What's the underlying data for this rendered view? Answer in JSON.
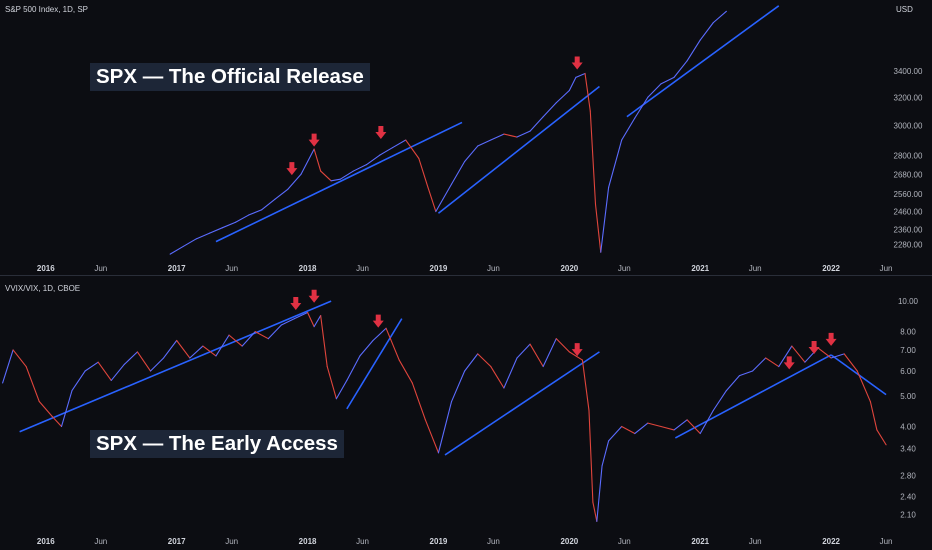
{
  "theme": {
    "background": "#0c0d12",
    "divider": "#2a2e39",
    "axis_text": "#b2b5be",
    "trend_line": "#2962ff",
    "up_color": "#5b6cff",
    "down_color": "#e0453c",
    "marker_color": "#e03143"
  },
  "top_pane": {
    "symbol_label": "S&P 500 Index, 1D, SP",
    "currency": "USD",
    "overlay_title": "SPX — The Official Release"
  },
  "bottom_pane": {
    "symbol_label": "VVIX/VIX, 1D, CBOE",
    "overlay_title": "SPX — The Early Access"
  },
  "chart_data": [
    {
      "type": "line",
      "title": "S&P 500 Index, 1D, SP",
      "ylabel": "USD",
      "y_scale": "log",
      "ylim": [
        2190,
        3930
      ],
      "xlim": [
        2015.65,
        2022.45
      ],
      "y_ticks": [
        "3400.00",
        "3200.00",
        "3000.00",
        "2800.00",
        "2680.00",
        "2560.00",
        "2460.00",
        "2360.00",
        "2280.00"
      ],
      "x_ticks": [
        {
          "label": "2016",
          "x": 2016.0
        },
        {
          "label": "Jun",
          "x": 2016.42
        },
        {
          "label": "2017",
          "x": 2017.0
        },
        {
          "label": "Jun",
          "x": 2017.42
        },
        {
          "label": "2018",
          "x": 2018.0
        },
        {
          "label": "Jun",
          "x": 2018.42
        },
        {
          "label": "2019",
          "x": 2019.0
        },
        {
          "label": "Jun",
          "x": 2019.42
        },
        {
          "label": "2020",
          "x": 2020.0
        },
        {
          "label": "Jun",
          "x": 2020.42
        },
        {
          "label": "2021",
          "x": 2021.0
        },
        {
          "label": "Jun",
          "x": 2021.42
        },
        {
          "label": "2022",
          "x": 2022.0
        },
        {
          "label": "Jun",
          "x": 2022.42
        }
      ],
      "series": [
        {
          "x": [
            2016.95,
            2017.05,
            2017.15,
            2017.25,
            2017.35,
            2017.45,
            2017.55,
            2017.65,
            2017.75,
            2017.85,
            2017.95,
            2018.05,
            2018.1,
            2018.18,
            2018.25,
            2018.35,
            2018.45,
            2018.55,
            2018.65,
            2018.75,
            2018.85,
            2018.92,
            2018.98,
            2019.1,
            2019.2,
            2019.3,
            2019.4,
            2019.5,
            2019.6,
            2019.7,
            2019.8,
            2019.9,
            2020.0,
            2020.05,
            2020.12,
            2020.16,
            2020.2,
            2020.24,
            2020.3,
            2020.4,
            2020.5,
            2020.6,
            2020.7,
            2020.8,
            2020.9,
            2021.0,
            2021.1,
            2021.2
          ],
          "y": [
            2230,
            2270,
            2310,
            2340,
            2370,
            2400,
            2440,
            2470,
            2530,
            2590,
            2680,
            2840,
            2700,
            2640,
            2650,
            2700,
            2740,
            2800,
            2850,
            2900,
            2780,
            2600,
            2460,
            2620,
            2760,
            2860,
            2900,
            2940,
            2920,
            2960,
            3060,
            3160,
            3250,
            3350,
            3380,
            3100,
            2500,
            2240,
            2600,
            2900,
            3050,
            3200,
            3300,
            3350,
            3480,
            3650,
            3800,
            3900
          ]
        }
      ],
      "trend_lines": [
        {
          "x": [
            2017.3,
            2019.18
          ],
          "y": [
            2295,
            3020
          ]
        },
        {
          "x": [
            2019.0,
            2020.23
          ],
          "y": [
            2450,
            3280
          ]
        },
        {
          "x": [
            2020.44,
            2021.6
          ],
          "y": [
            3060,
            3950
          ]
        }
      ],
      "markers": [
        {
          "x": 2017.88,
          "y": 2650
        },
        {
          "x": 2018.05,
          "y": 2830
        },
        {
          "x": 2018.56,
          "y": 2880
        },
        {
          "x": 2020.06,
          "y": 3380
        }
      ]
    },
    {
      "type": "line",
      "title": "VVIX/VIX, 1D, CBOE",
      "y_scale": "log",
      "ylim": [
        1.85,
        11.5
      ],
      "xlim": [
        2015.65,
        2022.45
      ],
      "y_ticks": [
        "10.00",
        "8.00",
        "7.00",
        "6.00",
        "5.00",
        "4.00",
        "3.40",
        "2.80",
        "2.40",
        "2.10"
      ],
      "x_ticks": [
        {
          "label": "2016",
          "x": 2016.0
        },
        {
          "label": "Jun",
          "x": 2016.42
        },
        {
          "label": "2017",
          "x": 2017.0
        },
        {
          "label": "Jun",
          "x": 2017.42
        },
        {
          "label": "2018",
          "x": 2018.0
        },
        {
          "label": "Jun",
          "x": 2018.42
        },
        {
          "label": "2019",
          "x": 2019.0
        },
        {
          "label": "Jun",
          "x": 2019.42
        },
        {
          "label": "2020",
          "x": 2020.0
        },
        {
          "label": "Jun",
          "x": 2020.42
        },
        {
          "label": "2021",
          "x": 2021.0
        },
        {
          "label": "Jun",
          "x": 2021.42
        },
        {
          "label": "2022",
          "x": 2022.0
        },
        {
          "label": "Jun",
          "x": 2022.42
        }
      ],
      "series": [
        {
          "x": [
            2015.67,
            2015.75,
            2015.85,
            2015.95,
            2016.05,
            2016.12,
            2016.2,
            2016.3,
            2016.4,
            2016.5,
            2016.6,
            2016.7,
            2016.8,
            2016.9,
            2017.0,
            2017.1,
            2017.2,
            2017.3,
            2017.4,
            2017.5,
            2017.6,
            2017.7,
            2017.8,
            2017.9,
            2018.0,
            2018.05,
            2018.1,
            2018.15,
            2018.22,
            2018.3,
            2018.4,
            2018.5,
            2018.6,
            2018.7,
            2018.8,
            2018.9,
            2019.0,
            2019.1,
            2019.2,
            2019.3,
            2019.4,
            2019.5,
            2019.6,
            2019.7,
            2019.8,
            2019.9,
            2020.0,
            2020.1,
            2020.15,
            2020.18,
            2020.21,
            2020.25,
            2020.3,
            2020.4,
            2020.5,
            2020.6,
            2020.7,
            2020.8,
            2020.9,
            2021.0,
            2021.1,
            2021.2,
            2021.3,
            2021.4,
            2021.5,
            2021.6,
            2021.7,
            2021.8,
            2021.9,
            2022.0,
            2022.1,
            2022.2,
            2022.3,
            2022.35,
            2022.42
          ],
          "y": [
            5.5,
            7.0,
            6.2,
            4.8,
            4.3,
            4.0,
            5.2,
            6.0,
            6.4,
            5.6,
            6.3,
            6.9,
            6.0,
            6.6,
            7.5,
            6.6,
            7.2,
            6.7,
            7.8,
            7.2,
            8.0,
            7.6,
            8.4,
            8.8,
            9.2,
            8.3,
            9.0,
            6.2,
            4.9,
            5.6,
            6.7,
            7.5,
            8.2,
            6.5,
            5.5,
            4.2,
            3.3,
            4.8,
            6.0,
            6.8,
            6.2,
            5.3,
            6.6,
            7.3,
            6.2,
            7.6,
            6.9,
            6.5,
            4.5,
            2.3,
            2.0,
            3.0,
            3.6,
            4.0,
            3.8,
            4.1,
            4.0,
            3.9,
            4.2,
            3.8,
            4.5,
            5.2,
            5.8,
            6.0,
            6.6,
            6.2,
            7.2,
            6.4,
            7.1,
            6.6,
            6.8,
            6.0,
            4.8,
            3.9,
            3.5
          ]
        }
      ],
      "trend_lines": [
        {
          "x": [
            2015.8,
            2018.18
          ],
          "y": [
            3.85,
            10.0
          ]
        },
        {
          "x": [
            2018.3,
            2018.72
          ],
          "y": [
            4.55,
            8.8
          ]
        },
        {
          "x": [
            2019.05,
            2020.23
          ],
          "y": [
            3.25,
            6.9
          ]
        },
        {
          "x": [
            2020.81,
            2022.0
          ],
          "y": [
            3.68,
            6.75
          ]
        },
        {
          "x": [
            2022.0,
            2022.42
          ],
          "y": [
            6.75,
            5.05
          ]
        }
      ],
      "markers": [
        {
          "x": 2017.91,
          "y": 9.1
        },
        {
          "x": 2018.05,
          "y": 9.6
        },
        {
          "x": 2018.54,
          "y": 8.0
        },
        {
          "x": 2020.06,
          "y": 6.5
        },
        {
          "x": 2021.68,
          "y": 5.9
        },
        {
          "x": 2021.87,
          "y": 6.6
        },
        {
          "x": 2022.0,
          "y": 7.0
        }
      ]
    }
  ]
}
